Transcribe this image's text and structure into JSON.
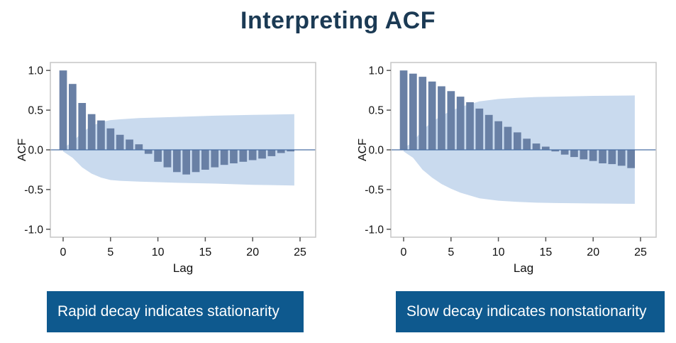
{
  "page": {
    "title": "Interpreting ACF"
  },
  "style": {
    "title_color": "#1b3a54",
    "background": "#ffffff",
    "bar_color": "#6980a5",
    "band_color": "#c9daee",
    "zero_line_color": "#4a6fa5",
    "frame_color": "#c6c6c6",
    "tick_color": "#555555",
    "text_color": "#111111",
    "banner_bg": "#0e598e",
    "banner_text_color": "#ffffff"
  },
  "chart_data": [
    {
      "type": "bar",
      "name": "acf-rapid-decay",
      "caption": "Rapid decay indicates stationarity",
      "xlabel": "Lag",
      "ylabel": "ACF",
      "xlim": [
        -1.35,
        26.65
      ],
      "ylim": [
        -1.1,
        1.1
      ],
      "xticks": [
        0,
        5,
        10,
        15,
        20,
        25
      ],
      "xtick_labels": [
        "0",
        "5",
        "10",
        "15",
        "20",
        "25"
      ],
      "yticks": [
        1.0,
        0.5,
        0.0,
        -0.5,
        -1.0
      ],
      "ytick_labels": [
        "1.0",
        "0.5",
        "0.0",
        "-0.5",
        "-1.0"
      ],
      "grid": false,
      "legend": false,
      "bar_width_lag": 0.8,
      "x": [
        0,
        1,
        2,
        3,
        4,
        5,
        6,
        7,
        8,
        9,
        10,
        11,
        12,
        13,
        14,
        15,
        16,
        17,
        18,
        19,
        20,
        21,
        22,
        23,
        24
      ],
      "values": [
        1.0,
        0.83,
        0.59,
        0.45,
        0.37,
        0.27,
        0.19,
        0.13,
        0.07,
        -0.05,
        -0.15,
        -0.22,
        -0.28,
        -0.31,
        -0.28,
        -0.25,
        -0.22,
        -0.19,
        -0.17,
        -0.15,
        -0.13,
        -0.11,
        -0.08,
        -0.04,
        -0.02
      ],
      "confidence_band": {
        "x": [
          0,
          1,
          2,
          3,
          4,
          5,
          6,
          8,
          12,
          16,
          20,
          24.4
        ],
        "upper": [
          0.02,
          0.1,
          0.22,
          0.3,
          0.35,
          0.375,
          0.385,
          0.4,
          0.415,
          0.43,
          0.44,
          0.45
        ],
        "lower": [
          -0.02,
          -0.1,
          -0.22,
          -0.3,
          -0.35,
          -0.38,
          -0.39,
          -0.4,
          -0.415,
          -0.425,
          -0.44,
          -0.45
        ]
      }
    },
    {
      "type": "bar",
      "name": "acf-slow-decay",
      "caption": "Slow decay indicates nonstationarity",
      "xlabel": "Lag",
      "ylabel": "ACF",
      "xlim": [
        -1.35,
        26.65
      ],
      "ylim": [
        -1.1,
        1.1
      ],
      "xticks": [
        0,
        5,
        10,
        15,
        20,
        25
      ],
      "xtick_labels": [
        "0",
        "5",
        "10",
        "15",
        "20",
        "25"
      ],
      "yticks": [
        1.0,
        0.5,
        0.0,
        -0.5,
        -1.0
      ],
      "ytick_labels": [
        "1.0",
        "0.5",
        "0.0",
        "-0.5",
        "-1.0"
      ],
      "grid": false,
      "legend": false,
      "bar_width_lag": 0.8,
      "x": [
        0,
        1,
        2,
        3,
        4,
        5,
        6,
        7,
        8,
        9,
        10,
        11,
        12,
        13,
        14,
        15,
        16,
        17,
        18,
        19,
        20,
        21,
        22,
        23,
        24
      ],
      "values": [
        1.0,
        0.96,
        0.92,
        0.86,
        0.8,
        0.74,
        0.67,
        0.6,
        0.52,
        0.44,
        0.36,
        0.29,
        0.22,
        0.14,
        0.08,
        0.04,
        -0.02,
        -0.06,
        -0.09,
        -0.12,
        -0.14,
        -0.17,
        -0.18,
        -0.2,
        -0.23
      ],
      "confidence_band": {
        "x": [
          0,
          1,
          2,
          3,
          4,
          5,
          6,
          8,
          10,
          12,
          14,
          16,
          20,
          24.4
        ],
        "upper": [
          0.02,
          0.1,
          0.25,
          0.35,
          0.43,
          0.49,
          0.54,
          0.61,
          0.64,
          0.655,
          0.665,
          0.67,
          0.68,
          0.685
        ],
        "lower": [
          -0.02,
          -0.1,
          -0.25,
          -0.35,
          -0.43,
          -0.49,
          -0.54,
          -0.61,
          -0.64,
          -0.655,
          -0.665,
          -0.67,
          -0.675,
          -0.68
        ]
      }
    }
  ]
}
